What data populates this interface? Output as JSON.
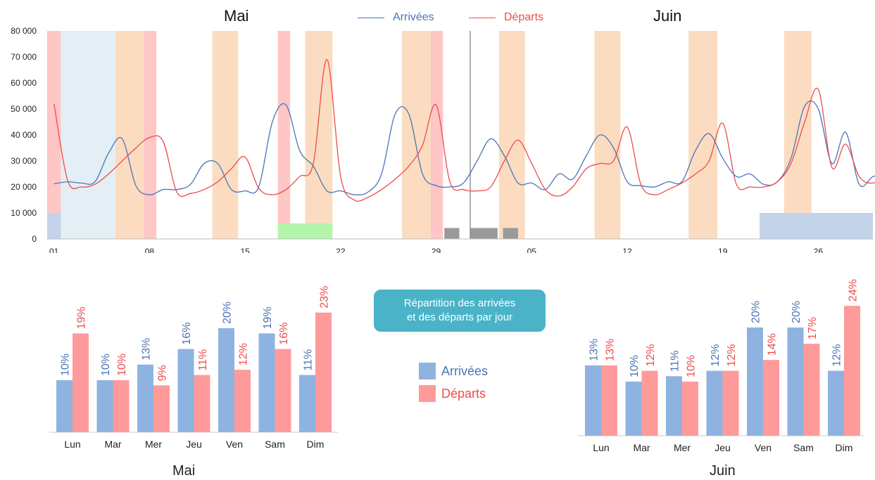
{
  "colors": {
    "arrivals": "#4a76b8",
    "departures": "#ee4b4b",
    "bar_arrivals": "#8eb3e0",
    "bar_departures": "#ff9a9a",
    "band_orange": "#fbdcc0",
    "band_pink": "#ffc6c6",
    "band_lightblue": "#e3eff5",
    "band_blue": "#c3d3ea",
    "band_green": "#b4f5ac",
    "band_gray": "#9a9a9a",
    "info_box": "#4bb3c8"
  },
  "headers": {
    "may": "Mai",
    "june": "Juin"
  },
  "legend": {
    "arrivals": "Arrivées",
    "departures": "Départs"
  },
  "info_box": {
    "line1": "Répartition des arrivées",
    "line2": "et des départs par jour"
  },
  "chart_data": [
    {
      "type": "line",
      "x_tick_labels": [
        "01",
        "08",
        "15",
        "22",
        "29",
        "05",
        "12",
        "19",
        "26"
      ],
      "x_tick_days": [
        1,
        8,
        15,
        22,
        29,
        36,
        43,
        50,
        57
      ],
      "ylim": [
        0,
        80000
      ],
      "y_ticks": [
        0,
        10000,
        20000,
        30000,
        40000,
        50000,
        60000,
        70000,
        80000
      ],
      "y_tick_labels": [
        "0",
        "10 000",
        "20 000",
        "30 000",
        "40 000",
        "50 000",
        "60 000",
        "70 000",
        "80 000"
      ],
      "month_divider_day": 31.5,
      "background_bands": [
        {
          "start": 0.5,
          "end": 1.5,
          "color": "band_pink"
        },
        {
          "start": 1.5,
          "end": 5.5,
          "color": "band_lightblue"
        },
        {
          "start": 5.5,
          "end": 7.6,
          "color": "band_orange"
        },
        {
          "start": 7.6,
          "end": 8.5,
          "color": "band_pink"
        },
        {
          "start": 12.6,
          "end": 14.5,
          "color": "band_orange"
        },
        {
          "start": 17.4,
          "end": 18.3,
          "color": "band_pink"
        },
        {
          "start": 19.4,
          "end": 21.4,
          "color": "band_orange"
        },
        {
          "start": 26.5,
          "end": 28.6,
          "color": "band_orange"
        },
        {
          "start": 28.6,
          "end": 29.5,
          "color": "band_pink"
        },
        {
          "start": 33.6,
          "end": 35.5,
          "color": "band_orange"
        },
        {
          "start": 40.6,
          "end": 42.5,
          "color": "band_orange"
        },
        {
          "start": 47.5,
          "end": 49.6,
          "color": "band_orange"
        },
        {
          "start": 54.5,
          "end": 56.5,
          "color": "band_orange"
        }
      ],
      "bottom_blocks": [
        {
          "start": 0.5,
          "end": 1.5,
          "height": 10000,
          "color": "band_blue"
        },
        {
          "start": 52.7,
          "end": 61.0,
          "height": 10000,
          "color": "band_blue"
        },
        {
          "start": 17.4,
          "end": 21.4,
          "height": 6000,
          "color": "band_green"
        },
        {
          "start": 29.6,
          "end": 30.7,
          "height": 4200,
          "color": "band_gray"
        },
        {
          "start": 31.5,
          "end": 33.5,
          "height": 4200,
          "color": "band_gray"
        },
        {
          "start": 33.9,
          "end": 35.0,
          "height": 4200,
          "color": "band_gray"
        }
      ],
      "series": [
        {
          "name": "Arrivées",
          "color": "arrivals",
          "points": [
            [
              1,
              21200
            ],
            [
              2,
              22000
            ],
            [
              3,
              21500
            ],
            [
              4,
              22000
            ],
            [
              5,
              33000
            ],
            [
              6,
              38500
            ],
            [
              7,
              20500
            ],
            [
              8,
              17000
            ],
            [
              9,
              19000
            ],
            [
              10,
              19000
            ],
            [
              11,
              21000
            ],
            [
              12,
              29000
            ],
            [
              13,
              29000
            ],
            [
              14,
              19000
            ],
            [
              15,
              18500
            ],
            [
              16,
              20000
            ],
            [
              17,
              45000
            ],
            [
              18,
              51500
            ],
            [
              19,
              34000
            ],
            [
              20,
              28000
            ],
            [
              21,
              18500
            ],
            [
              22,
              18500
            ],
            [
              23,
              17000
            ],
            [
              24,
              18000
            ],
            [
              25,
              25000
            ],
            [
              26,
              48000
            ],
            [
              27,
              48000
            ],
            [
              28,
              25000
            ],
            [
              29,
              20500
            ],
            [
              30,
              20000
            ],
            [
              31,
              21500
            ],
            [
              32,
              30000
            ],
            [
              33,
              38500
            ],
            [
              34,
              32000
            ],
            [
              35,
              21500
            ],
            [
              36,
              21500
            ],
            [
              37,
              19000
            ],
            [
              38,
              25000
            ],
            [
              39,
              23000
            ],
            [
              40,
              32000
            ],
            [
              41,
              40000
            ],
            [
              42,
              35000
            ],
            [
              43,
              22000
            ],
            [
              44,
              20500
            ],
            [
              45,
              20000
            ],
            [
              46,
              22000
            ],
            [
              47,
              22000
            ],
            [
              48,
              34000
            ],
            [
              49,
              40500
            ],
            [
              50,
              31000
            ],
            [
              51,
              24000
            ],
            [
              52,
              25000
            ],
            [
              53,
              21000
            ],
            [
              54,
              22000
            ],
            [
              55,
              31000
            ],
            [
              56,
              51000
            ],
            [
              57,
              50000
            ],
            [
              58,
              29000
            ],
            [
              59,
              41000
            ],
            [
              60,
              21000
            ],
            [
              61,
              24000
            ],
            [
              62,
              26000
            ],
            [
              63,
              44000
            ]
          ]
        },
        {
          "name": "Départs",
          "color": "departures",
          "points": [
            [
              1,
              52000
            ],
            [
              2,
              22500
            ],
            [
              3,
              20000
            ],
            [
              4,
              21000
            ],
            [
              5,
              25000
            ],
            [
              6,
              30000
            ],
            [
              7,
              35000
            ],
            [
              8,
              39000
            ],
            [
              9,
              37500
            ],
            [
              10,
              18000
            ],
            [
              11,
              17500
            ],
            [
              12,
              19000
            ],
            [
              13,
              22000
            ],
            [
              14,
              27000
            ],
            [
              15,
              31500
            ],
            [
              16,
              19500
            ],
            [
              17,
              17000
            ],
            [
              18,
              19000
            ],
            [
              19,
              24000
            ],
            [
              20,
              29000
            ],
            [
              21,
              69000
            ],
            [
              22,
              24000
            ],
            [
              23,
              15000
            ],
            [
              24,
              16000
            ],
            [
              25,
              19000
            ],
            [
              26,
              23000
            ],
            [
              27,
              28000
            ],
            [
              28,
              36000
            ],
            [
              29,
              51500
            ],
            [
              30,
              22000
            ],
            [
              31,
              19000
            ],
            [
              32,
              18500
            ],
            [
              33,
              20000
            ],
            [
              34,
              30000
            ],
            [
              35,
              38000
            ],
            [
              36,
              29000
            ],
            [
              37,
              19000
            ],
            [
              38,
              16500
            ],
            [
              39,
              20000
            ],
            [
              40,
              27000
            ],
            [
              41,
              29000
            ],
            [
              42,
              30000
            ],
            [
              43,
              43000
            ],
            [
              44,
              21000
            ],
            [
              45,
              17000
            ],
            [
              46,
              19000
            ],
            [
              47,
              21500
            ],
            [
              48,
              25000
            ],
            [
              49,
              30000
            ],
            [
              50,
              44500
            ],
            [
              51,
              21000
            ],
            [
              52,
              20000
            ],
            [
              53,
              20000
            ],
            [
              54,
              22000
            ],
            [
              55,
              29000
            ],
            [
              56,
              45000
            ],
            [
              57,
              57500
            ],
            [
              58,
              27500
            ],
            [
              59,
              36500
            ],
            [
              60,
              24000
            ],
            [
              61,
              21500
            ],
            [
              62,
              25000
            ],
            [
              63,
              31000
            ]
          ]
        }
      ]
    },
    {
      "type": "bar",
      "title": "Mai",
      "categories": [
        "Lun",
        "Mar",
        "Mer",
        "Jeu",
        "Ven",
        "Sam",
        "Dim"
      ],
      "series": [
        {
          "name": "Arrivées",
          "values": [
            10,
            10,
            13,
            16,
            20,
            19,
            11
          ],
          "labels": [
            "10%",
            "10%",
            "13%",
            "16%",
            "20%",
            "19%",
            "11%"
          ]
        },
        {
          "name": "Départs",
          "values": [
            19,
            10,
            9,
            11,
            12,
            16,
            23
          ],
          "labels": [
            "19%",
            "10%",
            "9%",
            "11%",
            "12%",
            "16%",
            "23%"
          ]
        }
      ]
    },
    {
      "type": "bar",
      "title": "Juin",
      "categories": [
        "Lun",
        "Mar",
        "Mer",
        "Jeu",
        "Ven",
        "Sam",
        "Dim"
      ],
      "series": [
        {
          "name": "Arrivées",
          "values": [
            13,
            10,
            11,
            12,
            20,
            20,
            12
          ],
          "labels": [
            "13%",
            "10%",
            "11%",
            "12%",
            "20%",
            "20%",
            "12%"
          ]
        },
        {
          "name": "Départs",
          "values": [
            13,
            12,
            10,
            12,
            14,
            17,
            24
          ],
          "labels": [
            "13%",
            "12%",
            "10%",
            "12%",
            "14%",
            "17%",
            "24%"
          ]
        }
      ]
    }
  ]
}
